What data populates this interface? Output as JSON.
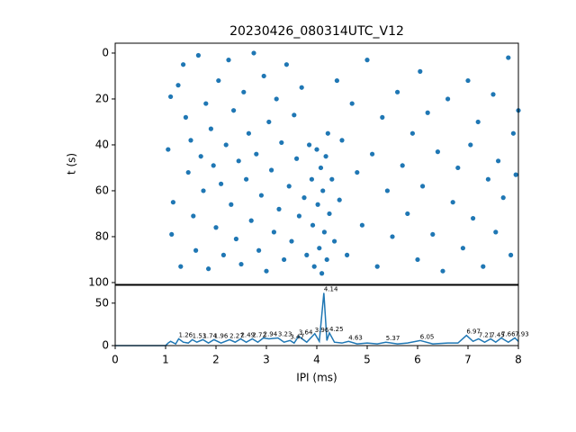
{
  "chart_data": [
    {
      "type": "scatter",
      "title": "20230426_080314UTC_V12",
      "ylabel": "t (s)",
      "color": "#1f77b4",
      "xlim": [
        0,
        8
      ],
      "ylim": [
        100.8,
        -4.3
      ],
      "yticks": [
        0,
        20,
        40,
        60,
        80,
        100
      ],
      "x": [
        1.05,
        1.1,
        1.15,
        1.12,
        1.3,
        1.25,
        1.35,
        1.4,
        1.45,
        1.5,
        1.55,
        1.6,
        1.65,
        1.7,
        1.75,
        1.8,
        1.85,
        1.9,
        1.95,
        2.0,
        2.05,
        2.1,
        2.15,
        2.2,
        2.25,
        2.3,
        2.35,
        2.4,
        2.45,
        2.5,
        2.55,
        2.6,
        2.65,
        2.7,
        2.75,
        2.8,
        2.85,
        2.9,
        2.95,
        3.0,
        3.05,
        3.1,
        3.15,
        3.2,
        3.25,
        3.3,
        3.35,
        3.4,
        3.45,
        3.5,
        3.55,
        3.6,
        3.65,
        3.7,
        3.75,
        3.8,
        3.85,
        3.9,
        3.92,
        3.95,
        4.0,
        4.02,
        4.05,
        4.08,
        4.1,
        4.12,
        4.15,
        4.18,
        4.2,
        4.22,
        4.25,
        4.3,
        4.35,
        4.4,
        4.45,
        4.5,
        4.6,
        4.7,
        4.8,
        4.9,
        5.0,
        5.1,
        5.2,
        5.3,
        5.4,
        5.5,
        5.6,
        5.7,
        5.8,
        5.9,
        6.0,
        6.05,
        6.1,
        6.2,
        6.3,
        6.4,
        6.5,
        6.6,
        6.7,
        6.8,
        6.9,
        7.0,
        7.05,
        7.1,
        7.2,
        7.3,
        7.4,
        7.5,
        7.55,
        7.6,
        7.7,
        7.8,
        7.85,
        7.9,
        7.95,
        8.0
      ],
      "y": [
        42,
        19,
        65,
        79,
        93,
        14,
        5,
        28,
        52,
        38,
        71,
        86,
        1,
        45,
        60,
        22,
        94,
        33,
        49,
        76,
        12,
        57,
        88,
        40,
        3,
        66,
        25,
        81,
        47,
        92,
        17,
        55,
        35,
        73,
        0,
        44,
        86,
        62,
        10,
        95,
        30,
        51,
        78,
        20,
        68,
        39,
        90,
        5,
        58,
        82,
        27,
        46,
        71,
        15,
        63,
        88,
        40,
        55,
        75,
        93,
        42,
        66,
        85,
        50,
        96,
        60,
        78,
        45,
        90,
        35,
        70,
        55,
        82,
        12,
        64,
        38,
        88,
        22,
        52,
        75,
        3,
        44,
        93,
        28,
        60,
        80,
        17,
        49,
        70,
        35,
        90,
        8,
        58,
        26,
        79,
        43,
        95,
        20,
        65,
        50,
        85,
        12,
        40,
        72,
        30,
        93,
        55,
        18,
        78,
        47,
        63,
        2,
        88,
        35,
        53,
        25
      ]
    },
    {
      "type": "line",
      "xlabel": "IPI (ms)",
      "color": "#1f77b4",
      "xlim": [
        0,
        8
      ],
      "ylim": [
        0,
        71
      ],
      "yticks": [
        0,
        50
      ],
      "xticks": [
        0,
        1,
        2,
        3,
        4,
        5,
        6,
        7,
        8
      ],
      "x": [
        0,
        0.5,
        1.0,
        1.05,
        1.1,
        1.2,
        1.26,
        1.35,
        1.45,
        1.53,
        1.62,
        1.74,
        1.85,
        1.96,
        2.1,
        2.27,
        2.38,
        2.49,
        2.6,
        2.72,
        2.83,
        2.94,
        3.05,
        3.23,
        3.35,
        3.47,
        3.55,
        3.64,
        3.8,
        3.96,
        4.05,
        4.14,
        4.2,
        4.25,
        4.35,
        4.5,
        4.63,
        4.8,
        5.0,
        5.2,
        5.37,
        5.6,
        5.8,
        6.05,
        6.3,
        6.6,
        6.8,
        6.97,
        7.1,
        7.21,
        7.33,
        7.45,
        7.55,
        7.66,
        7.8,
        7.93,
        8.0
      ],
      "values": [
        0,
        0,
        0,
        3,
        5,
        2,
        8,
        4,
        3,
        7,
        4,
        7,
        3,
        7,
        3,
        7,
        4,
        8,
        4,
        8,
        4,
        9,
        8,
        9,
        4,
        6,
        3,
        11,
        4,
        14,
        5,
        62,
        6,
        15,
        4,
        3,
        5,
        2,
        3,
        2,
        4,
        2,
        3,
        6,
        2,
        3,
        3,
        12,
        5,
        8,
        4,
        8,
        4,
        9,
        4,
        9,
        5
      ],
      "annotations": [
        {
          "x": 1.26,
          "y": 8
        },
        {
          "x": 1.53,
          "y": 7
        },
        {
          "x": 1.74,
          "y": 7
        },
        {
          "x": 1.96,
          "y": 7
        },
        {
          "x": 2.27,
          "y": 7
        },
        {
          "x": 2.49,
          "y": 8
        },
        {
          "x": 2.72,
          "y": 8
        },
        {
          "x": 2.94,
          "y": 9
        },
        {
          "x": 3.23,
          "y": 9
        },
        {
          "x": 3.47,
          "y": 6
        },
        {
          "x": 3.64,
          "y": 11
        },
        {
          "x": 3.96,
          "y": 14
        },
        {
          "x": 4.14,
          "y": 62
        },
        {
          "x": 4.25,
          "y": 15
        },
        {
          "x": 4.63,
          "y": 5
        },
        {
          "x": 5.37,
          "y": 4
        },
        {
          "x": 6.05,
          "y": 6
        },
        {
          "x": 6.97,
          "y": 12
        },
        {
          "x": 7.21,
          "y": 8
        },
        {
          "x": 7.45,
          "y": 8
        },
        {
          "x": 7.66,
          "y": 9
        },
        {
          "x": 7.93,
          "y": 9
        }
      ]
    }
  ]
}
